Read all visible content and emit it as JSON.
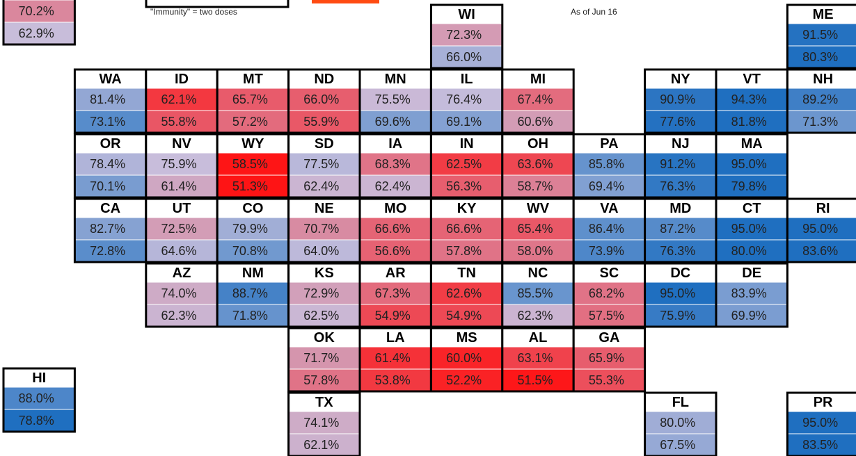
{
  "note": "\"Immunity\" = two doses",
  "date_note": "As of Jun 16",
  "color_scales": [
    [
      {
        "value": 58,
        "color": "#ff1010"
      },
      {
        "value": 67,
        "color": "#e4687a"
      },
      {
        "value": 76,
        "color": "#c8bedc"
      },
      {
        "value": 85,
        "color": "#6f98cf"
      },
      {
        "value": 92,
        "color": "#1f6fc0"
      }
    ],
    [
      {
        "value": 51,
        "color": "#ff1010"
      },
      {
        "value": 57,
        "color": "#e4687a"
      },
      {
        "value": 63,
        "color": "#c8bedc"
      },
      {
        "value": 71,
        "color": "#6f98cf"
      },
      {
        "value": 78,
        "color": "#1f6fc0"
      }
    ]
  ],
  "tiles": [
    {
      "name": null,
      "values": [
        70.2,
        62.9
      ],
      "value_labels": [
        "70.2%",
        "62.9%"
      ]
    },
    {
      "name": "WI",
      "values": [
        72.3,
        66.0
      ],
      "value_labels": [
        "72.3%",
        "66.0%"
      ]
    },
    {
      "name": "ME",
      "values": [
        91.5,
        80.3
      ],
      "value_labels": [
        "91.5%",
        "80.3%"
      ]
    },
    {
      "name": "WA",
      "values": [
        81.4,
        73.1
      ],
      "value_labels": [
        "81.4%",
        "73.1%"
      ]
    },
    {
      "name": "ID",
      "values": [
        62.1,
        55.8
      ],
      "value_labels": [
        "62.1%",
        "55.8%"
      ]
    },
    {
      "name": "MT",
      "values": [
        65.7,
        57.2
      ],
      "value_labels": [
        "65.7%",
        "57.2%"
      ]
    },
    {
      "name": "ND",
      "values": [
        66.0,
        55.9
      ],
      "value_labels": [
        "66.0%",
        "55.9%"
      ]
    },
    {
      "name": "MN",
      "values": [
        75.5,
        69.6
      ],
      "value_labels": [
        "75.5%",
        "69.6%"
      ]
    },
    {
      "name": "IL",
      "values": [
        76.4,
        69.1
      ],
      "value_labels": [
        "76.4%",
        "69.1%"
      ]
    },
    {
      "name": "MI",
      "values": [
        67.4,
        60.6
      ],
      "value_labels": [
        "67.4%",
        "60.6%"
      ]
    },
    {
      "name": "NY",
      "values": [
        90.9,
        77.6
      ],
      "value_labels": [
        "90.9%",
        "77.6%"
      ]
    },
    {
      "name": "VT",
      "values": [
        94.3,
        81.8
      ],
      "value_labels": [
        "94.3%",
        "81.8%"
      ]
    },
    {
      "name": "NH",
      "values": [
        89.2,
        71.3
      ],
      "value_labels": [
        "89.2%",
        "71.3%"
      ]
    },
    {
      "name": "OR",
      "values": [
        78.4,
        70.1
      ],
      "value_labels": [
        "78.4%",
        "70.1%"
      ]
    },
    {
      "name": "NV",
      "values": [
        75.9,
        61.4
      ],
      "value_labels": [
        "75.9%",
        "61.4%"
      ]
    },
    {
      "name": "WY",
      "values": [
        58.5,
        51.3
      ],
      "value_labels": [
        "58.5%",
        "51.3%"
      ]
    },
    {
      "name": "SD",
      "values": [
        77.5,
        62.4
      ],
      "value_labels": [
        "77.5%",
        "62.4%"
      ]
    },
    {
      "name": "IA",
      "values": [
        68.3,
        62.4
      ],
      "value_labels": [
        "68.3%",
        "62.4%"
      ]
    },
    {
      "name": "IN",
      "values": [
        62.5,
        56.3
      ],
      "value_labels": [
        "62.5%",
        "56.3%"
      ]
    },
    {
      "name": "OH",
      "values": [
        63.6,
        58.7
      ],
      "value_labels": [
        "63.6%",
        "58.7%"
      ]
    },
    {
      "name": "PA",
      "values": [
        85.8,
        69.4
      ],
      "value_labels": [
        "85.8%",
        "69.4%"
      ]
    },
    {
      "name": "NJ",
      "values": [
        91.2,
        76.3
      ],
      "value_labels": [
        "91.2%",
        "76.3%"
      ]
    },
    {
      "name": "MA",
      "values": [
        95.0,
        79.8
      ],
      "value_labels": [
        "95.0%",
        "79.8%"
      ]
    },
    {
      "name": "CA",
      "values": [
        82.7,
        72.8
      ],
      "value_labels": [
        "82.7%",
        "72.8%"
      ]
    },
    {
      "name": "UT",
      "values": [
        72.5,
        64.6
      ],
      "value_labels": [
        "72.5%",
        "64.6%"
      ]
    },
    {
      "name": "CO",
      "values": [
        79.9,
        70.8
      ],
      "value_labels": [
        "79.9%",
        "70.8%"
      ]
    },
    {
      "name": "NE",
      "values": [
        70.7,
        64.0
      ],
      "value_labels": [
        "70.7%",
        "64.0%"
      ]
    },
    {
      "name": "MO",
      "values": [
        66.6,
        56.6
      ],
      "value_labels": [
        "66.6%",
        "56.6%"
      ]
    },
    {
      "name": "KY",
      "values": [
        66.6,
        57.8
      ],
      "value_labels": [
        "66.6%",
        "57.8%"
      ]
    },
    {
      "name": "WV",
      "values": [
        65.4,
        58.0
      ],
      "value_labels": [
        "65.4%",
        "58.0%"
      ]
    },
    {
      "name": "VA",
      "values": [
        86.4,
        73.9
      ],
      "value_labels": [
        "86.4%",
        "73.9%"
      ]
    },
    {
      "name": "MD",
      "values": [
        87.2,
        76.3
      ],
      "value_labels": [
        "87.2%",
        "76.3%"
      ]
    },
    {
      "name": "CT",
      "values": [
        95.0,
        80.0
      ],
      "value_labels": [
        "95.0%",
        "80.0%"
      ]
    },
    {
      "name": "RI",
      "values": [
        95.0,
        83.6
      ],
      "value_labels": [
        "95.0%",
        "83.6%"
      ]
    },
    {
      "name": "AZ",
      "values": [
        74.0,
        62.3
      ],
      "value_labels": [
        "74.0%",
        "62.3%"
      ]
    },
    {
      "name": "NM",
      "values": [
        88.7,
        71.8
      ],
      "value_labels": [
        "88.7%",
        "71.8%"
      ]
    },
    {
      "name": "KS",
      "values": [
        72.9,
        62.5
      ],
      "value_labels": [
        "72.9%",
        "62.5%"
      ]
    },
    {
      "name": "AR",
      "values": [
        67.3,
        54.9
      ],
      "value_labels": [
        "67.3%",
        "54.9%"
      ]
    },
    {
      "name": "TN",
      "values": [
        62.6,
        54.9
      ],
      "value_labels": [
        "62.6%",
        "54.9%"
      ]
    },
    {
      "name": "NC",
      "values": [
        85.5,
        62.3
      ],
      "value_labels": [
        "85.5%",
        "62.3%"
      ]
    },
    {
      "name": "SC",
      "values": [
        68.2,
        57.5
      ],
      "value_labels": [
        "68.2%",
        "57.5%"
      ]
    },
    {
      "name": "DC",
      "values": [
        95.0,
        75.9
      ],
      "value_labels": [
        "95.0%",
        "75.9%"
      ]
    },
    {
      "name": "DE",
      "values": [
        83.9,
        69.9
      ],
      "value_labels": [
        "83.9%",
        "69.9%"
      ]
    },
    {
      "name": "OK",
      "values": [
        71.7,
        57.8
      ],
      "value_labels": [
        "71.7%",
        "57.8%"
      ]
    },
    {
      "name": "LA",
      "values": [
        61.4,
        53.8
      ],
      "value_labels": [
        "61.4%",
        "53.8%"
      ]
    },
    {
      "name": "MS",
      "values": [
        60.0,
        52.2
      ],
      "value_labels": [
        "60.0%",
        "52.2%"
      ]
    },
    {
      "name": "AL",
      "values": [
        63.1,
        51.5
      ],
      "value_labels": [
        "63.1%",
        "51.5%"
      ]
    },
    {
      "name": "GA",
      "values": [
        65.9,
        55.3
      ],
      "value_labels": [
        "65.9%",
        "55.3%"
      ]
    },
    {
      "name": "HI",
      "values": [
        88.0,
        78.8
      ],
      "value_labels": [
        "88.0%",
        "78.8%"
      ]
    },
    {
      "name": "TX",
      "values": [
        74.1,
        62.1
      ],
      "value_labels": [
        "74.1%",
        "62.1%"
      ]
    },
    {
      "name": "FL",
      "values": [
        80.0,
        67.5
      ],
      "value_labels": [
        "80.0%",
        "67.5%"
      ]
    },
    {
      "name": "PR",
      "values": [
        95.0,
        83.5
      ],
      "value_labels": [
        "95.0%",
        "83.5%"
      ]
    }
  ]
}
